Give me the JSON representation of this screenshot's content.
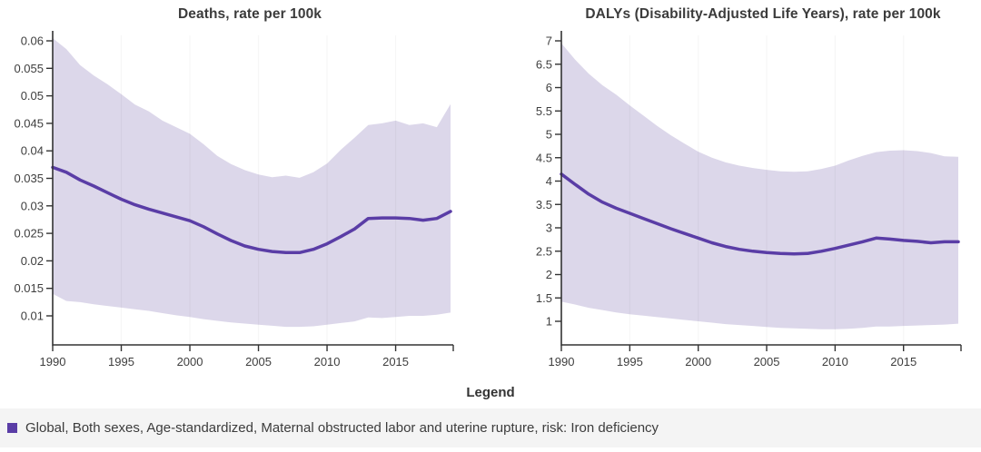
{
  "colors": {
    "line": "#5a3da6",
    "band": "#dcd7ea",
    "axis": "#333333",
    "grid_rgba": "rgba(0,0,0,0.035)",
    "text": "#3e3e3e",
    "legend_bg": "#f4f4f4"
  },
  "legend": {
    "title": "Legend",
    "items": [
      {
        "marker_color": "#5a3da6",
        "label": "Global, Both sexes, Age-standardized, Maternal obstructed labor and uterine rupture, risk: Iron deficiency"
      }
    ]
  },
  "chart_data": [
    {
      "type": "line",
      "title": "Deaths, rate per 100k",
      "x": [
        1990,
        1991,
        1992,
        1993,
        1994,
        1995,
        1996,
        1997,
        1998,
        1999,
        2000,
        2001,
        2002,
        2003,
        2004,
        2005,
        2006,
        2007,
        2008,
        2009,
        2010,
        2011,
        2012,
        2013,
        2014,
        2015,
        2016,
        2017,
        2018,
        2019
      ],
      "series": [
        {
          "name": "mean",
          "values": [
            0.037,
            0.0361,
            0.0347,
            0.0336,
            0.0324,
            0.0312,
            0.0302,
            0.0294,
            0.0287,
            0.028,
            0.0273,
            0.0262,
            0.0249,
            0.0237,
            0.0227,
            0.0221,
            0.0217,
            0.0215,
            0.0215,
            0.0221,
            0.0231,
            0.0244,
            0.0258,
            0.0277,
            0.0278,
            0.0278,
            0.0277,
            0.0274,
            0.0277,
            0.029
          ]
        },
        {
          "name": "upper",
          "values": [
            0.0605,
            0.0585,
            0.0556,
            0.0537,
            0.0521,
            0.0503,
            0.0484,
            0.0472,
            0.0455,
            0.0443,
            0.0431,
            0.0412,
            0.0391,
            0.0376,
            0.0365,
            0.0357,
            0.0352,
            0.0355,
            0.0351,
            0.0361,
            0.0377,
            0.0402,
            0.0424,
            0.0447,
            0.045,
            0.0455,
            0.0447,
            0.045,
            0.0443,
            0.0485
          ]
        },
        {
          "name": "lower",
          "values": [
            0.014,
            0.0127,
            0.0125,
            0.0121,
            0.0118,
            0.0115,
            0.0112,
            0.0109,
            0.0105,
            0.0101,
            0.0098,
            0.0094,
            0.0091,
            0.0088,
            0.0086,
            0.0084,
            0.0082,
            0.008,
            0.008,
            0.0081,
            0.0084,
            0.0087,
            0.009,
            0.0097,
            0.0096,
            0.0098,
            0.01,
            0.01,
            0.0102,
            0.0106
          ]
        }
      ],
      "band": "upper-lower uncertainty interval",
      "xlabel": "",
      "ylabel": "",
      "xlim": [
        1990,
        2019.2
      ],
      "ylim": [
        0.01,
        0.06
      ],
      "xticks": [
        1990,
        1995,
        2000,
        2005,
        2010,
        2015
      ],
      "xtick_labels": [
        "1990",
        "1995",
        "2000",
        "2005",
        "2010",
        "2015"
      ],
      "yticks": [
        0.01,
        0.015,
        0.02,
        0.025,
        0.03,
        0.035,
        0.04,
        0.045,
        0.05,
        0.055,
        0.06
      ],
      "ytick_labels": [
        "0.01",
        "0.015",
        "0.02",
        "0.025",
        "0.03",
        "0.035",
        "0.04",
        "0.045",
        "0.05",
        "0.055",
        "0.06"
      ],
      "grid": "faint vertical at 5-year ticks",
      "legend_position": "bottom"
    },
    {
      "type": "line",
      "title": "DALYs (Disability-Adjusted Life Years), rate per 100k",
      "x": [
        1990,
        1991,
        1992,
        1993,
        1994,
        1995,
        1996,
        1997,
        1998,
        1999,
        2000,
        2001,
        2002,
        2003,
        2004,
        2005,
        2006,
        2007,
        2008,
        2009,
        2010,
        2011,
        2012,
        2013,
        2014,
        2015,
        2016,
        2017,
        2018,
        2019
      ],
      "series": [
        {
          "name": "mean",
          "values": [
            4.15,
            3.93,
            3.72,
            3.55,
            3.42,
            3.31,
            3.2,
            3.09,
            2.98,
            2.88,
            2.78,
            2.68,
            2.6,
            2.54,
            2.5,
            2.47,
            2.45,
            2.44,
            2.45,
            2.5,
            2.56,
            2.63,
            2.7,
            2.78,
            2.76,
            2.73,
            2.71,
            2.68,
            2.7,
            2.7
          ]
        },
        {
          "name": "upper",
          "values": [
            6.95,
            6.6,
            6.3,
            6.05,
            5.85,
            5.62,
            5.4,
            5.18,
            4.98,
            4.8,
            4.63,
            4.5,
            4.4,
            4.33,
            4.28,
            4.24,
            4.21,
            4.2,
            4.21,
            4.26,
            4.33,
            4.44,
            4.54,
            4.62,
            4.65,
            4.66,
            4.64,
            4.6,
            4.53,
            4.52
          ]
        },
        {
          "name": "lower",
          "values": [
            1.42,
            1.36,
            1.29,
            1.24,
            1.19,
            1.15,
            1.12,
            1.09,
            1.06,
            1.03,
            1.0,
            0.97,
            0.94,
            0.92,
            0.9,
            0.88,
            0.86,
            0.85,
            0.84,
            0.83,
            0.83,
            0.84,
            0.86,
            0.89,
            0.89,
            0.9,
            0.91,
            0.92,
            0.93,
            0.95
          ]
        }
      ],
      "band": "upper-lower uncertainty interval",
      "xlabel": "",
      "ylabel": "",
      "xlim": [
        1990,
        2019.2
      ],
      "ylim": [
        1,
        7
      ],
      "xticks": [
        1990,
        1995,
        2000,
        2005,
        2010,
        2015
      ],
      "xtick_labels": [
        "1990",
        "1995",
        "2000",
        "2005",
        "2010",
        "2015"
      ],
      "yticks": [
        1,
        1.5,
        2,
        2.5,
        3,
        3.5,
        4,
        4.5,
        5,
        5.5,
        6,
        6.5,
        7
      ],
      "ytick_labels": [
        "1",
        "1.5",
        "2",
        "2.5",
        "3",
        "3.5",
        "4",
        "4.5",
        "5",
        "5.5",
        "6",
        "6.5",
        "7"
      ],
      "grid": "faint vertical at 5-year ticks",
      "legend_position": "bottom"
    }
  ]
}
